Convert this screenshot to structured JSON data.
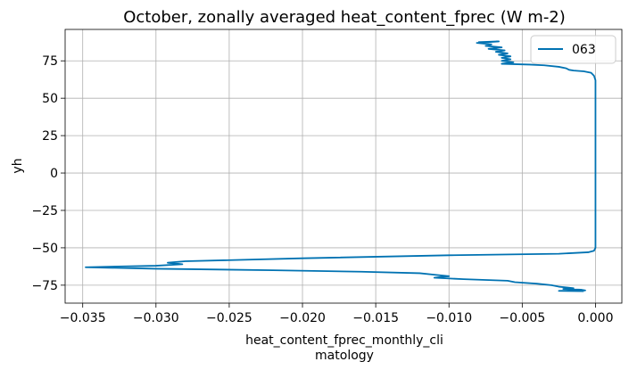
{
  "chart_data": {
    "type": "line",
    "title": "October, zonally averaged heat_content_fprec (W m-2)",
    "xlabel_lines": [
      "heat_content_fprec_monthly_cli",
      "matology"
    ],
    "ylabel": "yh",
    "xlim": [
      -0.0362,
      0.0018
    ],
    "ylim": [
      -87,
      96
    ],
    "xticks": [
      -0.035,
      -0.03,
      -0.025,
      -0.02,
      -0.015,
      -0.01,
      -0.005,
      0.0
    ],
    "xtick_labels": [
      "−0.035",
      "−0.030",
      "−0.025",
      "−0.020",
      "−0.015",
      "−0.010",
      "−0.005",
      "0.000"
    ],
    "yticks": [
      -75,
      -50,
      -25,
      0,
      25,
      50,
      75
    ],
    "ytick_labels": [
      "−75",
      "−50",
      "−25",
      "0",
      "25",
      "50",
      "75"
    ],
    "grid": true,
    "legend_position": "top-right",
    "series": [
      {
        "name": "063",
        "color": "#0072b2",
        "points": [
          [
            -0.008,
            87.5
          ],
          [
            -0.0066,
            88.0
          ],
          [
            -0.0081,
            87.0
          ],
          [
            -0.0071,
            86.0
          ],
          [
            -0.0075,
            85.0
          ],
          [
            -0.0064,
            84.0
          ],
          [
            -0.0073,
            83.0
          ],
          [
            -0.0062,
            82.0
          ],
          [
            -0.0068,
            81.0
          ],
          [
            -0.006,
            80.0
          ],
          [
            -0.0066,
            79.0
          ],
          [
            -0.0058,
            78.0
          ],
          [
            -0.0064,
            77.0
          ],
          [
            -0.0058,
            76.0
          ],
          [
            -0.0064,
            75.0
          ],
          [
            -0.0056,
            74.0
          ],
          [
            -0.0064,
            73.0
          ],
          [
            -0.0045,
            72.5
          ],
          [
            -0.0035,
            72.0
          ],
          [
            -0.0025,
            71.0
          ],
          [
            -0.002,
            70.0
          ],
          [
            -0.0018,
            69.0
          ],
          [
            -0.0015,
            68.5
          ],
          [
            -0.0008,
            68.0
          ],
          [
            -0.0003,
            67.0
          ],
          [
            -0.0001,
            65.0
          ],
          [
            0.0,
            62.0
          ],
          [
            0.0,
            30.0
          ],
          [
            0.0,
            0.0
          ],
          [
            0.0,
            -30.0
          ],
          [
            0.0,
            -50.0
          ],
          [
            -0.0001,
            -52.0
          ],
          [
            -0.0005,
            -53.0
          ],
          [
            -0.0025,
            -54.0
          ],
          [
            -0.01,
            -55.0
          ],
          [
            -0.02,
            -57.0
          ],
          [
            -0.028,
            -59.0
          ],
          [
            -0.0292,
            -60.0
          ],
          [
            -0.0282,
            -61.0
          ],
          [
            -0.03,
            -62.0
          ],
          [
            -0.0348,
            -63.0
          ],
          [
            -0.03,
            -64.0
          ],
          [
            -0.022,
            -65.0
          ],
          [
            -0.016,
            -66.0
          ],
          [
            -0.012,
            -67.0
          ],
          [
            -0.011,
            -68.0
          ],
          [
            -0.01,
            -69.0
          ],
          [
            -0.011,
            -70.0
          ],
          [
            -0.009,
            -71.0
          ],
          [
            -0.006,
            -72.0
          ],
          [
            -0.0055,
            -73.0
          ],
          [
            -0.004,
            -74.0
          ],
          [
            -0.003,
            -75.0
          ],
          [
            -0.0025,
            -76.0
          ],
          [
            -0.0015,
            -77.0
          ],
          [
            -0.0022,
            -77.5
          ],
          [
            -0.001,
            -78.0
          ],
          [
            -0.0007,
            -78.5
          ],
          [
            -0.0025,
            -78.8
          ],
          [
            -0.0008,
            -79.0
          ]
        ]
      }
    ]
  }
}
